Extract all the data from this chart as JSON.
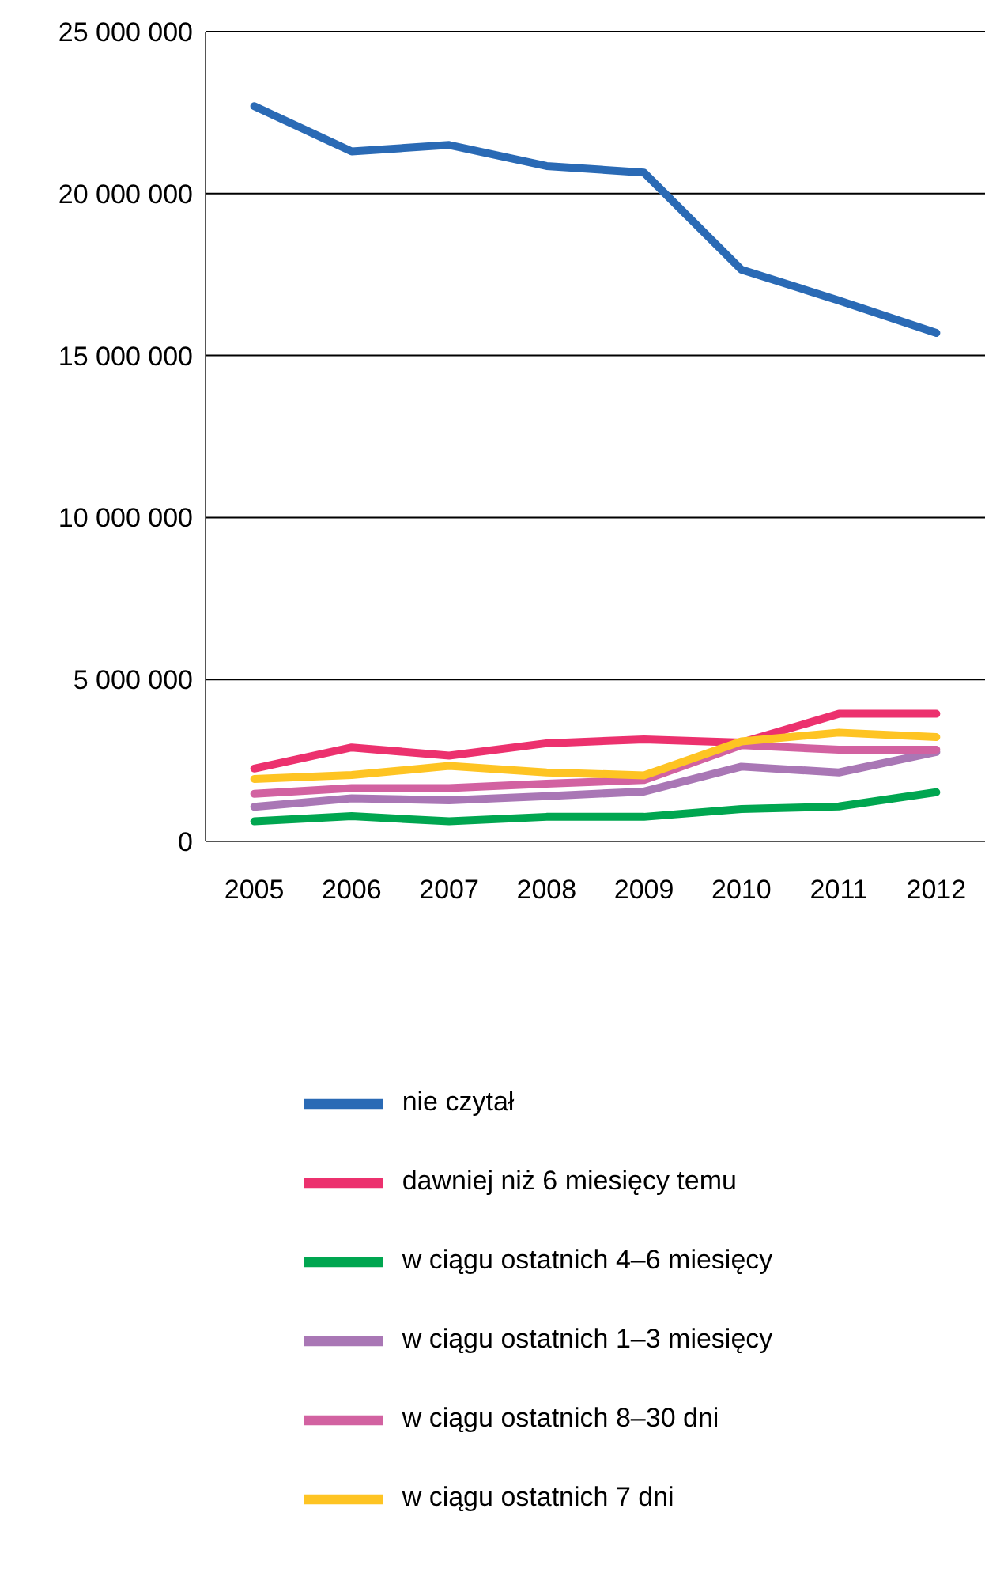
{
  "chart_data": {
    "type": "line",
    "categories": [
      "2005",
      "2006",
      "2007",
      "2008",
      "2009",
      "2010",
      "2011",
      "2012"
    ],
    "series": [
      {
        "name": "nie czytał",
        "color": "#2a6ab5",
        "values": [
          22700000,
          21300000,
          21500000,
          20850000,
          20650000,
          17650000,
          16700000,
          15700000
        ]
      },
      {
        "name": "dawniej niż 6 miesięcy temu",
        "color": "#ec316e",
        "values": [
          2250000,
          2900000,
          2650000,
          3030000,
          3150000,
          3050000,
          3940000,
          3940000
        ]
      },
      {
        "name": "w ciągu ostatnich 4–6 miesięcy",
        "color": "#00a650",
        "values": [
          620000,
          780000,
          620000,
          760000,
          760000,
          1000000,
          1080000,
          1520000
        ]
      },
      {
        "name": "w ciągu ostatnich 1–3 miesięcy",
        "color": "#a977b5",
        "values": [
          1070000,
          1330000,
          1270000,
          1400000,
          1540000,
          2310000,
          2130000,
          2760000
        ]
      },
      {
        "name": "w ciągu ostatnich 8–30 dni",
        "color": "#d262a1",
        "values": [
          1470000,
          1650000,
          1650000,
          1780000,
          1900000,
          2970000,
          2830000,
          2830000
        ]
      },
      {
        "name": "w ciągu ostatnich 7 dni",
        "color": "#fec423",
        "values": [
          1930000,
          2050000,
          2330000,
          2130000,
          2040000,
          3090000,
          3360000,
          3220000
        ]
      }
    ],
    "ylim": [
      0,
      25000000
    ],
    "yticks": [
      {
        "value": 0,
        "label": "0"
      },
      {
        "value": 5000000,
        "label": "5 000 000"
      },
      {
        "value": 10000000,
        "label": "10 000 000"
      },
      {
        "value": 15000000,
        "label": "15 000 000"
      },
      {
        "value": 20000000,
        "label": "20 000 000"
      },
      {
        "value": 25000000,
        "label": "25 000 000"
      }
    ],
    "grid": "y",
    "legend": "bottom",
    "marker": "none",
    "line_style": "solid"
  }
}
